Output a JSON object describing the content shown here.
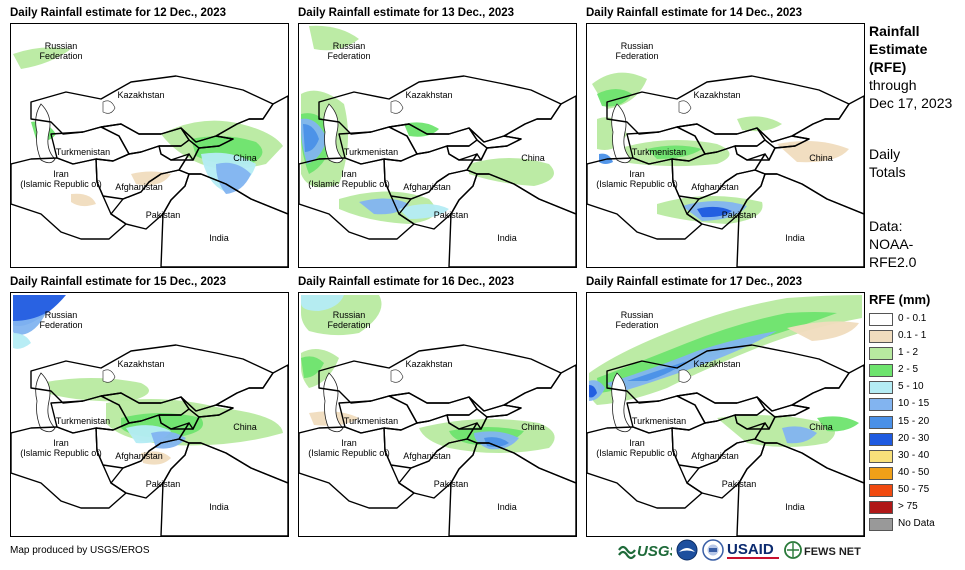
{
  "panels": [
    {
      "title": "Daily Rainfall estimate for 12 Dec., 2023"
    },
    {
      "title": "Daily Rainfall estimate for 13 Dec., 2023"
    },
    {
      "title": "Daily Rainfall estimate for 14 Dec., 2023"
    },
    {
      "title": "Daily Rainfall estimate for 15 Dec., 2023"
    },
    {
      "title": "Daily Rainfall estimate for 16 Dec., 2023"
    },
    {
      "title": "Daily Rainfall estimate for 17 Dec., 2023"
    }
  ],
  "map_labels": {
    "russia_1": "Russian",
    "russia_2": "Federation",
    "kazakhstan": "Kazakhstan",
    "turkmenistan": "Turkmenistan",
    "iran_1": "Iran",
    "iran_2": "(Islamic Republic of)",
    "afghanistan": "Afghanistan",
    "pakistan": "Pakistan",
    "china": "China",
    "india": "India"
  },
  "side": {
    "title_1": "Rainfall",
    "title_2": "Estimate",
    "title_3": "(RFE)",
    "through": "through",
    "date": "Dec 17, 2023",
    "totals_1": "Daily",
    "totals_2": "Totals",
    "data_1": "Data:",
    "data_2": "NOAA-",
    "data_3": "RFE2.0"
  },
  "legend": {
    "title": "RFE (mm)",
    "items": [
      {
        "label": "0 - 0.1",
        "color": "#ffffff"
      },
      {
        "label": "0.1 - 1",
        "color": "#f0dcbe"
      },
      {
        "label": "1 - 2",
        "color": "#b8eaa0"
      },
      {
        "label": "2 - 5",
        "color": "#6ee46e"
      },
      {
        "label": "5 - 10",
        "color": "#b4ecf4"
      },
      {
        "label": "10 - 15",
        "color": "#82b4f0"
      },
      {
        "label": "15 - 20",
        "color": "#4a90e8"
      },
      {
        "label": "20 - 30",
        "color": "#1e5ae0"
      },
      {
        "label": "30 - 40",
        "color": "#f8e07a"
      },
      {
        "label": "40 - 50",
        "color": "#f0a018"
      },
      {
        "label": "50 - 75",
        "color": "#f04a10"
      },
      {
        "label": "> 75",
        "color": "#b01818"
      },
      {
        "label": "No Data",
        "color": "#999999"
      }
    ]
  },
  "footer": {
    "credit": "Map produced by USGS/EROS",
    "usgs": "USGS",
    "usaid": "USAID",
    "fews": "FEWS NET"
  }
}
